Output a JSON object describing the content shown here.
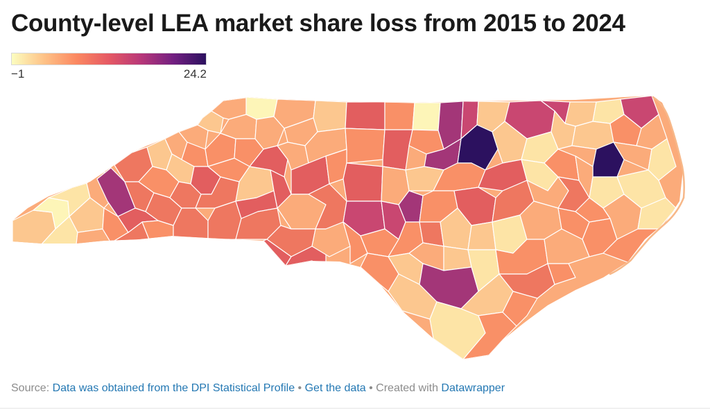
{
  "title": "County-level LEA market share loss from 2015 to 2024",
  "legend": {
    "min_label": "−1",
    "max_label": "24.2",
    "min": -1,
    "max": 24.2,
    "colors": [
      "#fcfdbf",
      "#fec287",
      "#fb8861",
      "#e55964",
      "#b73779",
      "#721f81",
      "#2c115f"
    ]
  },
  "map": {
    "region": "North Carolina",
    "unit": "county",
    "palette": {
      "c1": "#fde4a6",
      "c2": "#fcc78f",
      "c3": "#fbab7a",
      "c4": "#f99067",
      "c5": "#ee7760",
      "c6": "#e25e5f",
      "c7": "#c94771",
      "c8": "#a33678",
      "c9": "#7c257c",
      "c10": "#2c115f",
      "pale": "#fdf5b8",
      "stroke": "#ffffff",
      "coast": "#f7b889"
    }
  },
  "footer": {
    "source_prefix": "Source: ",
    "source_link": "Data was obtained from the DPI Statistical Profile",
    "bullet1": " • ",
    "get_data": "Get the data",
    "bullet2": " • ",
    "created_with": "Created with ",
    "datawrapper": "Datawrapper"
  }
}
